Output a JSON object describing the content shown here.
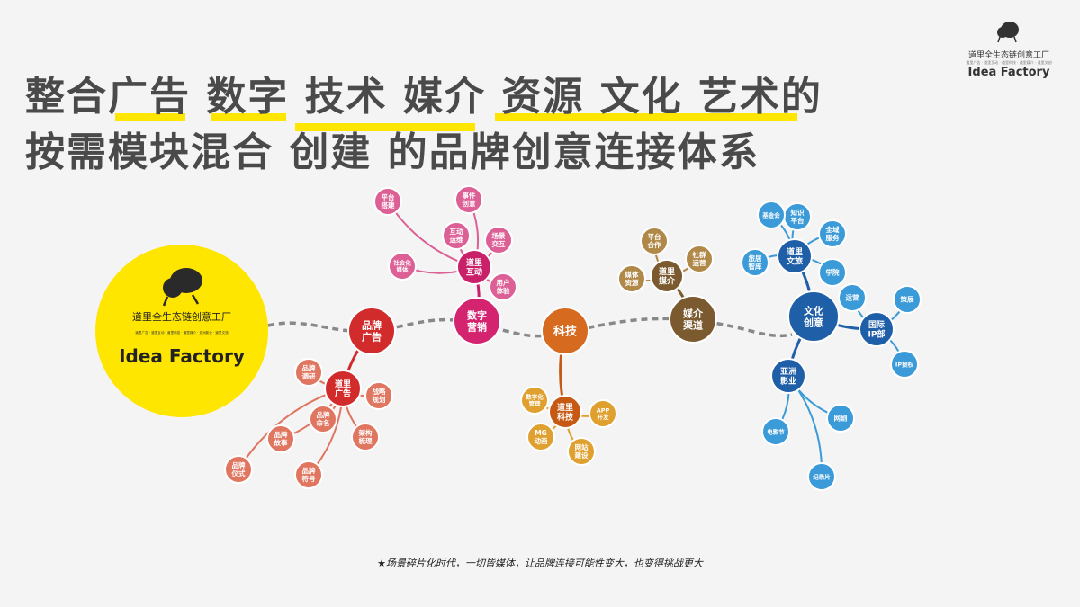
{
  "headline": {
    "line1": "整合广告  数字  技术  媒介 资源  文化 艺术的",
    "line2": "按需模块混合  创建  的品牌创意连接体系"
  },
  "logo_top": {
    "cn": "道里全生态链创意工厂",
    "sub": "道里广告 · 道里互动 · 道里科技 · 道里媒介 · 道里文创",
    "en": "Idea Factory"
  },
  "logo_main": {
    "cn": "道里全生态链创意工厂",
    "sub": "道里广告 · 道里互动 · 道里科技 · 道里媒介 · 亚洲影业 · 道里文旅",
    "en": "Idea Factory"
  },
  "footnote": "★场景碎片化时代，一切皆媒体，让品牌连接可能性变大，也变得挑战更大",
  "colors": {
    "red": "#d22b2b",
    "magenta": "#d4236f",
    "orange": "#d66a1f",
    "brown": "#7a5a2e",
    "blue": "#1f5fa8",
    "yellow": "#ffe600"
  },
  "hubs": [
    {
      "id": "ad",
      "label": [
        "品牌",
        "广告"
      ],
      "color": "#d22b2b"
    },
    {
      "id": "digital",
      "label": [
        "数字",
        "营销"
      ],
      "color": "#d4236f"
    },
    {
      "id": "tech",
      "label": [
        "科技"
      ],
      "color": "#d66a1f"
    },
    {
      "id": "media",
      "label": [
        "媒介",
        "渠道"
      ],
      "color": "#7a5a2e"
    },
    {
      "id": "culture",
      "label": [
        "文化",
        "创意"
      ],
      "color": "#1f5fa8"
    }
  ],
  "clusters": {
    "ad": {
      "center": [
        "道里",
        "广告"
      ],
      "color": "#d22b2b",
      "leaf_color": "#e07560",
      "leaves": [
        [
          "品牌",
          "调研"
        ],
        [
          "战略",
          "规划"
        ],
        [
          "品牌",
          "命名"
        ],
        [
          "架构",
          "梳理"
        ],
        [
          "品牌",
          "故事"
        ],
        [
          "品牌",
          "仪式"
        ],
        [
          "品牌",
          "符号"
        ]
      ]
    },
    "digital": {
      "center": [
        "道里",
        "互动"
      ],
      "color": "#c9206a",
      "leaf_color": "#dc5f95",
      "leaves": [
        [
          "平台",
          "搭建"
        ],
        [
          "事件",
          "创意"
        ],
        [
          "互动",
          "运维"
        ],
        [
          "场景",
          "交互"
        ],
        [
          "社会化",
          "媒体"
        ],
        [
          "用户",
          "体验"
        ]
      ]
    },
    "tech": {
      "center": [
        "道里",
        "科技"
      ],
      "color": "#c65a14",
      "leaf_color": "#e0a030",
      "leaves": [
        [
          "数字化",
          "管理"
        ],
        [
          "APP",
          "开发"
        ],
        [
          "MG",
          "动画"
        ],
        [
          "网站",
          "建设"
        ]
      ]
    },
    "media": {
      "center": [
        "道里",
        "媒介"
      ],
      "color": "#7a5a2e",
      "leaf_color": "#b08848",
      "leaves": [
        [
          "平台",
          "合作"
        ],
        [
          "社群",
          "运营"
        ],
        [
          "媒体",
          "资源"
        ]
      ]
    },
    "culture_travel": {
      "center": [
        "道里",
        "文旅"
      ],
      "color": "#1f5fa8",
      "leaf_color": "#3b9ad8",
      "leaves": [
        [
          "知识",
          "平台"
        ],
        [
          "基金会"
        ],
        [
          "全域",
          "服务"
        ],
        [
          "旅居",
          "智库"
        ],
        [
          "学院"
        ]
      ]
    },
    "culture_ip": {
      "center": [
        "国际",
        "IP部"
      ],
      "color": "#1f5fa8",
      "leaf_color": "#3b9ad8",
      "leaves": [
        [
          "运营"
        ],
        [
          "策展"
        ],
        [
          "IP授权"
        ]
      ]
    },
    "culture_film": {
      "center": [
        "亚洲",
        "影业"
      ],
      "color": "#1f5fa8",
      "leaf_color": "#3b9ad8",
      "leaves": [
        [
          "电影节"
        ],
        [
          "网剧"
        ],
        [
          "纪录片"
        ]
      ]
    }
  }
}
